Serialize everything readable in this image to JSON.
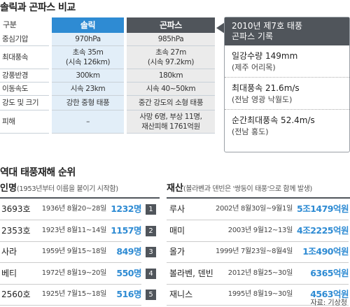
{
  "header": {
    "title": "솔릭과 곤파스 비교"
  },
  "comparison": {
    "columns": [
      "구분",
      "솔릭",
      "곤파스"
    ],
    "rows": [
      [
        "중심기압",
        "970hPa",
        "985hPa"
      ],
      [
        "최대풍속",
        "초속 35m\n(시속 126km)",
        "초속 27m\n(시속 97.2km)"
      ],
      [
        "강풍반경",
        "300km",
        "180km"
      ],
      [
        "이동속도",
        "시속 23km",
        "시속 40~50km"
      ],
      [
        "강도 및 크기",
        "강한 중형 태풍",
        "중간 강도의 소형 태풍"
      ],
      [
        "피해",
        "–",
        "사망 6명, 부상 11명,\n재산피해 1761억원"
      ]
    ]
  },
  "record": {
    "title": "2010년 제7호 태풍\n곤파스 기록",
    "items": [
      {
        "value": "일강수량 149mm",
        "place": "(제주 어리목)"
      },
      {
        "value": "최대풍속 21.6m/s",
        "place": "(전남 영광 낙월도)"
      },
      {
        "value": "순간최대풍속 52.4m/s",
        "place": "(전남 홍도)"
      }
    ]
  },
  "ranking": {
    "title": "역대 태풍재해 순위",
    "left_header": {
      "label": "인명",
      "note": "(1953년부터 이름을 붙이기 시작함)"
    },
    "right_header": {
      "label": "재산",
      "note": "(볼라벤과 덴빈은 '쌍둥이 태풍'으로 함께 발생)"
    },
    "rows": [
      {
        "rank": "1",
        "casualty": {
          "name": "3693호",
          "period": "1936년 8월20~28일",
          "value": "1232명"
        },
        "property": {
          "name": "루사",
          "period": "2002년 8월30일~9월1일",
          "value": "5조1479억원"
        }
      },
      {
        "rank": "2",
        "casualty": {
          "name": "2353호",
          "period": "1923년 8월11~14일",
          "value": "1157명"
        },
        "property": {
          "name": "매미",
          "period": "2003년 9월12~13일",
          "value": "4조2225억원"
        }
      },
      {
        "rank": "3",
        "casualty": {
          "name": "사라",
          "period": "1959년 9월15~18일",
          "value": "849명"
        },
        "property": {
          "name": "올가",
          "period": "1999년 7월23일~8월4일",
          "value": "1조490억원"
        }
      },
      {
        "rank": "4",
        "casualty": {
          "name": "베티",
          "period": "1972년 8월19~20일",
          "value": "550명"
        },
        "property": {
          "name": "볼라벤, 덴빈",
          "period": "2012년 8월25~30일",
          "value": "6365억원"
        }
      },
      {
        "rank": "5",
        "casualty": {
          "name": "2560호",
          "period": "1925년 7월15~18일",
          "value": "516명"
        },
        "property": {
          "name": "재니스",
          "period": "1995년 8월19~30일",
          "value": "4563억원"
        }
      }
    ]
  },
  "source": "자료: 기상청"
}
